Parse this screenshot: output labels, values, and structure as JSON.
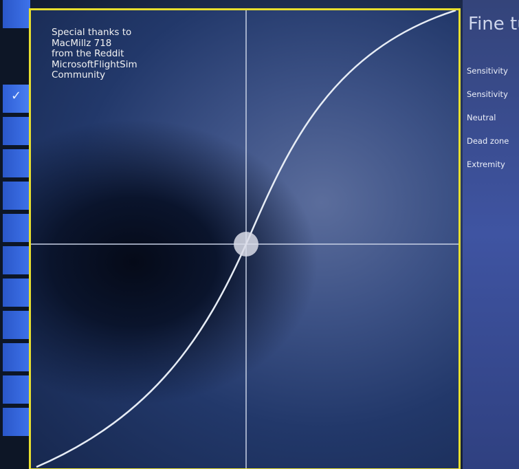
{
  "credit": {
    "lines": "Special thanks to\nMacMillz 718\nfrom the Reddit\nMicrosoftFlightSim\nCommunity"
  },
  "settings_panel": {
    "title": "Fine tu",
    "items": [
      {
        "label": "Sensitivity"
      },
      {
        "label": "Sensitivity"
      },
      {
        "label": "Neutral"
      },
      {
        "label": "Dead zone"
      },
      {
        "label": "Extremity"
      }
    ]
  },
  "colors": {
    "panel_border": "#e8df2e",
    "curve": "#e6ecf5",
    "crosshair": "#c9d2e6",
    "tile_accent": "#3e72ea"
  },
  "icons": {
    "selected_tile": "checkmark-icon",
    "neutral_point": "neutral-handle-icon"
  }
}
